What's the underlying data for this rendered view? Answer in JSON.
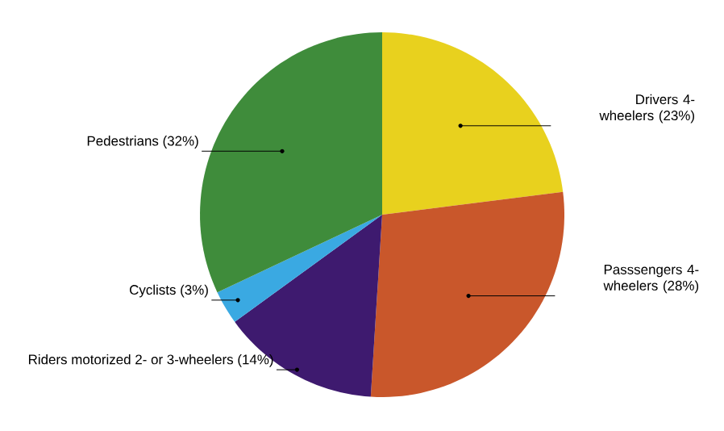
{
  "chart_data": {
    "type": "pie",
    "categories": [
      "Drivers 4-wheelers (23%)",
      "Passsengers 4-wheelers (28%)",
      "Riders motorized 2- or 3-wheelers (14%)",
      "Cyclists (3%)",
      "Pedestrians (32%)"
    ],
    "values": [
      23,
      28,
      14,
      3,
      32
    ],
    "colors": [
      "#e8d11e",
      "#c9572b",
      "#3e1a6f",
      "#3aa9e2",
      "#3f8c3b"
    ]
  }
}
